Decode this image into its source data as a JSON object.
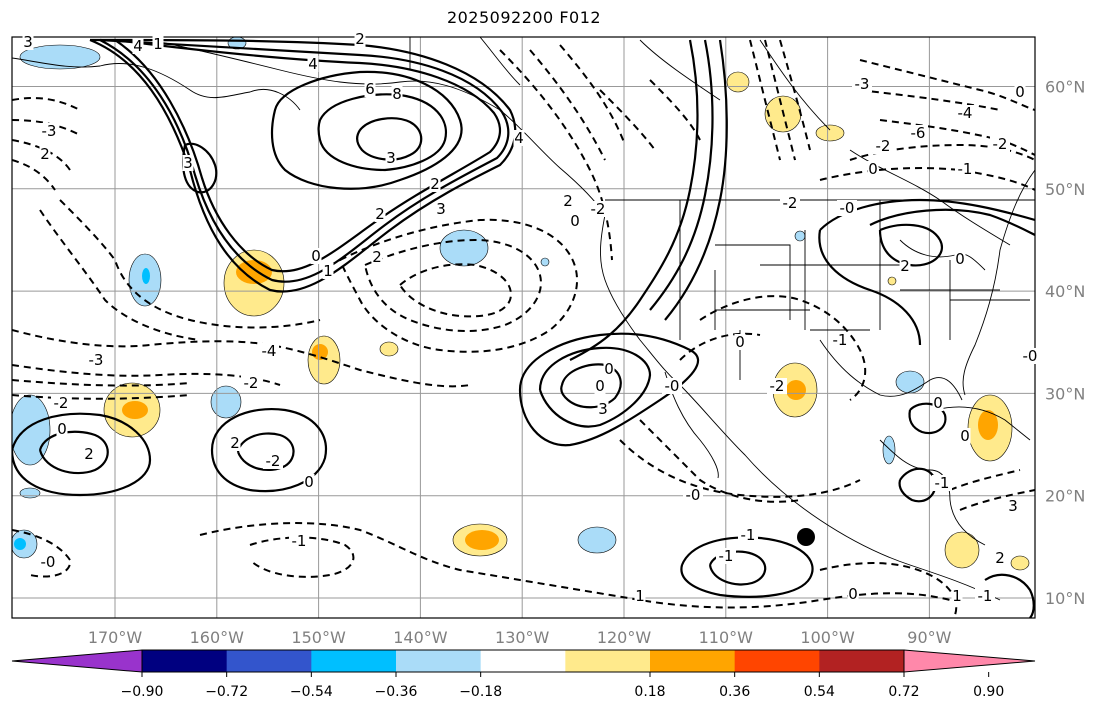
{
  "title": "2025092200 F012",
  "map": {
    "lat_labels": [
      {
        "text": "60°N",
        "lat": 60
      },
      {
        "text": "50°N",
        "lat": 50
      },
      {
        "text": "40°N",
        "lat": 40
      },
      {
        "text": "30°N",
        "lat": 30
      },
      {
        "text": "20°N",
        "lat": 20
      },
      {
        "text": "10°N",
        "lat": 10
      }
    ],
    "lon_labels": [
      {
        "text": "170°W",
        "lon": -170
      },
      {
        "text": "160°W",
        "lon": -160
      },
      {
        "text": "150°W",
        "lon": -150
      },
      {
        "text": "140°W",
        "lon": -140
      },
      {
        "text": "130°W",
        "lon": -130
      },
      {
        "text": "120°W",
        "lon": -120
      },
      {
        "text": "110°W",
        "lon": -110
      },
      {
        "text": "100°W",
        "lon": -100
      },
      {
        "text": "90°W",
        "lon": -90
      }
    ],
    "contour_labels": [
      "3",
      "4",
      "1",
      "2",
      "4",
      "6",
      "8",
      "3",
      "3",
      "2",
      "0",
      "1",
      "2",
      "3",
      "4",
      "2",
      "0",
      "-2",
      "-3",
      "-4",
      "-2",
      "-2",
      "-0",
      "0",
      "2",
      "-1",
      "-0",
      "2",
      "-2",
      "0",
      "1",
      "0",
      "-1",
      "-1",
      "-0",
      "3",
      "-3",
      "2",
      "2",
      "0",
      "-2",
      "-1",
      "-0",
      "0",
      "-2",
      "-1",
      "0",
      "3",
      "2",
      "1",
      "-6",
      "-3",
      "-2",
      "-4",
      "-1",
      "0",
      "2",
      "0",
      "-0",
      "-1",
      "-2",
      "0",
      "0",
      "0"
    ]
  },
  "colorbar": {
    "colors": [
      "#9933cc",
      "#000080",
      "#3355cc",
      "#00bfff",
      "#aadcf8",
      "#ffffff",
      "#ffea8c",
      "#ffa500",
      "#ff4500",
      "#b22222",
      "#ff88aa"
    ],
    "ticks": [
      "−0.90",
      "−0.72",
      "−0.54",
      "−0.36",
      "−0.18",
      "0.18",
      "0.36",
      "0.54",
      "0.72",
      "0.90"
    ]
  },
  "marker": {
    "label": "black-dot",
    "lat": 16,
    "lon": -102
  }
}
